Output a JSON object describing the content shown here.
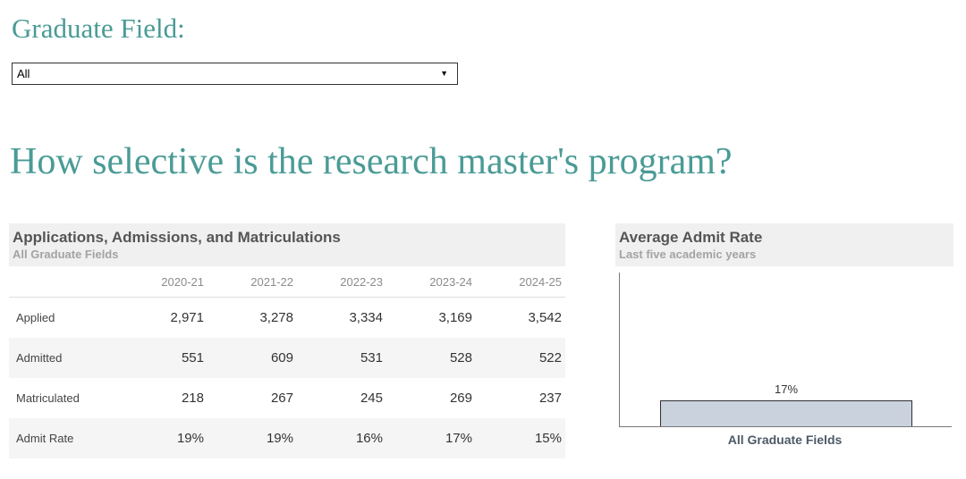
{
  "colors": {
    "accent": "#4a9b96",
    "card_header_bg": "#f0f0f0",
    "title_text": "#555555",
    "subtitle_text": "#a3a3a3",
    "bar_fill": "#cad2de",
    "bar_border": "#2f2f2f",
    "axis_label": "#4d5a68",
    "row_alt_bg": "#f5f5f5"
  },
  "filter": {
    "label": "Graduate Field:",
    "value": "All",
    "caret_icon": "▼"
  },
  "question": "How selective is the research master's program?",
  "table": {
    "title": "Applications, Admissions, and Matriculations",
    "subtitle": "All Graduate Fields",
    "columns": [
      "2020-21",
      "2021-22",
      "2022-23",
      "2023-24",
      "2024-25"
    ],
    "rows": [
      {
        "label": "Applied",
        "values": [
          "2,971",
          "3,278",
          "3,334",
          "3,169",
          "3,542"
        ]
      },
      {
        "label": "Admitted",
        "values": [
          "551",
          "609",
          "531",
          "528",
          "522"
        ]
      },
      {
        "label": "Matriculated",
        "values": [
          "218",
          "267",
          "245",
          "269",
          "237"
        ]
      },
      {
        "label": "Admit Rate",
        "values": [
          "19%",
          "19%",
          "16%",
          "17%",
          "15%"
        ]
      }
    ]
  },
  "chart": {
    "title": "Average Admit Rate",
    "subtitle": "Last five academic years"
  },
  "chart_data": {
    "type": "bar",
    "title": "Average Admit Rate",
    "subtitle": "Last five academic years",
    "categories": [
      "All Graduate Fields"
    ],
    "values": [
      17
    ],
    "value_labels": [
      "17%"
    ],
    "xlabel": "",
    "ylabel": "",
    "ylim": [
      0,
      100
    ],
    "grid": false,
    "legend": false
  }
}
